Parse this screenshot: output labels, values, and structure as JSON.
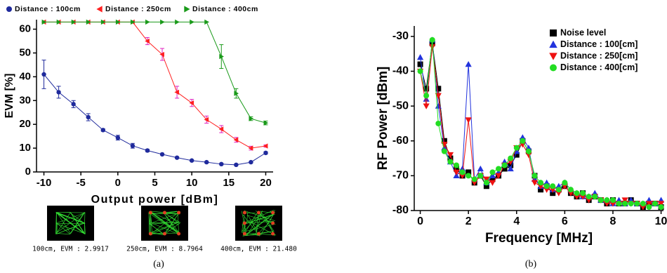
{
  "chart_data": [
    {
      "type": "line",
      "xlabel": "Output power [dBm]",
      "ylabel": "EVM [%]",
      "x": [
        -10,
        -8,
        -6,
        -4,
        -2,
        0,
        2,
        4,
        6,
        8,
        10,
        12,
        14,
        16,
        18,
        20
      ],
      "xlim": [
        -11,
        21
      ],
      "xticks": [
        -10,
        -5,
        0,
        5,
        10,
        15,
        20
      ],
      "ylim": [
        0,
        64
      ],
      "yticks": [
        0,
        10,
        20,
        30,
        40,
        50,
        60
      ],
      "legend": "top",
      "series": [
        {
          "name": "Distance : 100cm",
          "color": "#1f2a9c",
          "error_color": "#1f2a9c",
          "marker": "circle",
          "values": [
            41,
            33.5,
            28.5,
            23,
            17.6,
            14.4,
            11,
            9,
            7.4,
            6,
            4.8,
            4.1,
            3.3,
            3,
            4.1,
            8
          ],
          "errors": [
            6,
            2.5,
            1.5,
            1.5,
            0.5,
            1,
            1,
            0.5,
            0.3,
            0.3,
            0.3,
            0.3,
            0.3,
            0.3,
            0.3,
            0.5
          ]
        },
        {
          "name": "Distance : 250cm",
          "color": "#ff2020",
          "error_color": "#e020c0",
          "marker": "triangle-left",
          "values": [
            63,
            63,
            63,
            63,
            63,
            63,
            63,
            55,
            49.4,
            33.5,
            29,
            22,
            18,
            13.5,
            10,
            10.9
          ],
          "errors": [
            0,
            0,
            0,
            0,
            0,
            0,
            0,
            1.5,
            2.5,
            2.5,
            1.5,
            1.5,
            1.5,
            1,
            0.8,
            0.5
          ]
        },
        {
          "name": "Distance : 400cm",
          "color": "#1a9a1a",
          "error_color": "#1a9a1a",
          "marker": "triangle-right",
          "values": [
            63,
            63,
            63,
            63,
            63,
            63,
            63,
            63,
            63,
            63,
            63,
            63,
            48.5,
            33,
            22.4,
            20.6
          ],
          "errors": [
            0,
            0,
            0,
            0,
            0,
            0,
            0,
            0,
            0,
            0,
            0,
            0,
            5,
            2,
            0.8,
            0.8
          ]
        }
      ],
      "insets": [
        {
          "caption": "100cm, EVM : 2.9917"
        },
        {
          "caption": "250cm, EVM : 8.7964"
        },
        {
          "caption": "400cm, EVM : 21.480"
        }
      ],
      "panel_label": "(a)"
    },
    {
      "type": "line",
      "xlabel": "Frequency [MHz]",
      "ylabel": "RF Power [dBm]",
      "x": [
        0,
        0.25,
        0.5,
        0.75,
        1,
        1.25,
        1.5,
        1.75,
        2,
        2.25,
        2.5,
        2.75,
        3,
        3.25,
        3.5,
        3.75,
        4,
        4.25,
        4.5,
        4.75,
        5,
        5.25,
        5.5,
        5.75,
        6,
        6.25,
        6.5,
        6.75,
        7,
        7.25,
        7.5,
        7.75,
        8,
        8.25,
        8.5,
        8.75,
        9,
        9.25,
        9.5,
        9.75,
        10
      ],
      "xlim": [
        -0.25,
        10.1
      ],
      "xticks": [
        0,
        2,
        4,
        6,
        8,
        10
      ],
      "ylim": [
        -80,
        -27
      ],
      "yticks": [
        -80,
        -70,
        -60,
        -50,
        -40,
        -30
      ],
      "legend": "upper right",
      "series": [
        {
          "name": "Noise level",
          "color": "#000000",
          "marker": "square",
          "values": [
            -38,
            -45,
            -32,
            -45,
            -60,
            -65,
            -68,
            -70,
            -69,
            -72,
            -70,
            -73,
            -71,
            -70,
            -68,
            -67,
            -64,
            -60,
            -63,
            -70,
            -74,
            -73,
            -75,
            -74,
            -73,
            -75,
            -76,
            -75,
            -77,
            -76,
            -77,
            -78,
            -77,
            -78,
            -78,
            -77,
            -78,
            -79,
            -78,
            -78,
            -79
          ]
        },
        {
          "name": "Distance : 100[cm]",
          "color": "#2233dd",
          "marker": "triangle-up",
          "values": [
            -36,
            -48,
            -31,
            -50,
            -62,
            -66,
            -70,
            -68,
            -38,
            -71,
            -68,
            -72,
            -70,
            -69,
            -66,
            -68,
            -63,
            -59,
            -62,
            -71,
            -73,
            -72,
            -74,
            -73,
            -72,
            -74,
            -75,
            -76,
            -76,
            -75,
            -77,
            -77,
            -78,
            -77,
            -78,
            -77,
            -78,
            -78,
            -77,
            -78,
            -77
          ]
        },
        {
          "name": "Distance : 250[cm]",
          "color": "#ee1111",
          "marker": "triangle-down",
          "values": [
            -40,
            -50,
            -33,
            -47,
            -61,
            -64,
            -69,
            -70,
            -54,
            -72,
            -70,
            -71,
            -72,
            -70,
            -67,
            -66,
            -62,
            -61,
            -64,
            -72,
            -73,
            -74,
            -74,
            -75,
            -73,
            -75,
            -76,
            -76,
            -77,
            -76,
            -77,
            -78,
            -78,
            -78,
            -77,
            -78,
            -78,
            -79,
            -78,
            -78,
            -78
          ]
        },
        {
          "name": "Distance : 400[cm]",
          "color": "#22dd22",
          "marker": "circle",
          "values": [
            -40,
            -47,
            -31,
            -55,
            -63,
            -66,
            -67,
            -69,
            -70,
            -71,
            -70,
            -72,
            -69,
            -68,
            -67,
            -65,
            -62,
            -60,
            -63,
            -70,
            -72,
            -73,
            -73,
            -74,
            -72,
            -74,
            -75,
            -75,
            -76,
            -76,
            -77,
            -77,
            -77,
            -78,
            -78,
            -78,
            -78,
            -78,
            -79,
            -78,
            -79
          ]
        }
      ],
      "panel_label": "(b)"
    }
  ]
}
